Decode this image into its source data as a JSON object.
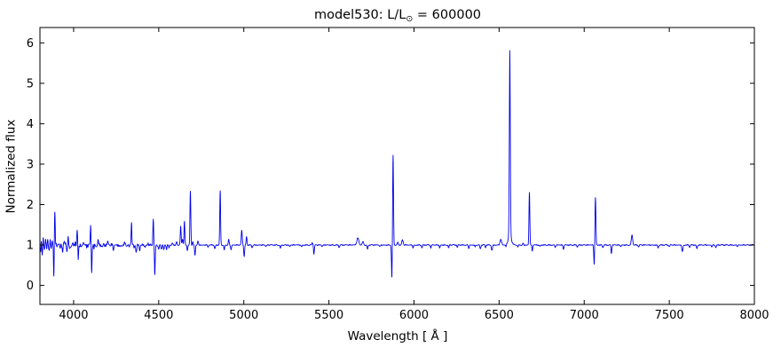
{
  "figure": {
    "title_prefix": "model530: L/L",
    "title_sub": "⊙",
    "title_suffix": " = 600000"
  },
  "chart_data": {
    "type": "line",
    "title": "model530: L/L⊙ = 600000",
    "xlabel": "Wavelength [ Å ]",
    "ylabel": "Normalized flux",
    "xlim": [
      3802,
      8000
    ],
    "ylim": [
      -0.47,
      6.38
    ],
    "x_ticks": [
      4000,
      4500,
      5000,
      5500,
      6000,
      6500,
      7000,
      7500,
      8000
    ],
    "y_ticks": [
      0,
      1,
      2,
      3,
      4,
      5,
      6
    ],
    "grid": false,
    "legend": "none",
    "line_color": "#0000ee",
    "baseline_flux": 1.0,
    "noise": {
      "base_amp": 0.013,
      "blue_amp": 0.055,
      "blue_cutoff": 4650
    },
    "features": [
      [
        3806,
        -0.1,
        1.5
      ],
      [
        3810,
        0.12,
        1.5
      ],
      [
        3815,
        -0.3,
        1.8
      ],
      [
        3822,
        0.15,
        1.8
      ],
      [
        3828,
        -0.12,
        1.5
      ],
      [
        3835,
        0.18,
        1.8
      ],
      [
        3842,
        -0.12,
        1.5
      ],
      [
        3848,
        0.1,
        1.5
      ],
      [
        3856,
        -0.14,
        1.5
      ],
      [
        3862,
        0.1,
        1.5
      ],
      [
        3869,
        -0.1,
        1.5
      ],
      [
        3875,
        0.08,
        1.5
      ],
      [
        3884,
        -0.85,
        2.0
      ],
      [
        3889,
        0.85,
        2.3
      ],
      [
        3920,
        -0.08,
        2.0
      ],
      [
        3935,
        -0.15,
        2.2
      ],
      [
        3946,
        0.08,
        2.0
      ],
      [
        3953,
        0.1,
        2.0
      ],
      [
        3961,
        -0.18,
        2.0
      ],
      [
        3968,
        0.16,
        2.2
      ],
      [
        3976,
        -0.1,
        2.0
      ],
      [
        4009,
        0.08,
        2.0
      ],
      [
        4021,
        0.33,
        2.3
      ],
      [
        4027,
        -0.4,
        2.0
      ],
      [
        4045,
        -0.08,
        2.0
      ],
      [
        4058,
        0.06,
        2.0
      ],
      [
        4076,
        -0.06,
        2.0
      ],
      [
        4100,
        0.5,
        2.3
      ],
      [
        4106,
        -0.68,
        2.0
      ],
      [
        4120,
        -0.1,
        2.0
      ],
      [
        4144,
        0.1,
        2.5
      ],
      [
        4170,
        -0.06,
        2.5
      ],
      [
        4200,
        0.07,
        2.5
      ],
      [
        4234,
        -0.13,
        2.5
      ],
      [
        4272,
        -0.06,
        2.5
      ],
      [
        4300,
        0.05,
        2.5
      ],
      [
        4326,
        -0.08,
        2.0
      ],
      [
        4340,
        0.55,
        2.3
      ],
      [
        4355,
        -0.1,
        2.5
      ],
      [
        4368,
        -0.18,
        2.8
      ],
      [
        4388,
        -0.14,
        2.5
      ],
      [
        4420,
        -0.06,
        2.5
      ],
      [
        4437,
        0.05,
        2.5
      ],
      [
        4468,
        0.65,
        2.2
      ],
      [
        4477,
        -0.73,
        2.4
      ],
      [
        4500,
        -0.12,
        3.0
      ],
      [
        4516,
        -0.1,
        2.5
      ],
      [
        4530,
        -0.13,
        2.5
      ],
      [
        4546,
        -0.1,
        2.5
      ],
      [
        4560,
        -0.07,
        2.5
      ],
      [
        4580,
        0.05,
        2.5
      ],
      [
        4605,
        0.08,
        2.5
      ],
      [
        4629,
        0.45,
        2.5
      ],
      [
        4640,
        0.15,
        2.5
      ],
      [
        4651,
        0.58,
        2.3
      ],
      [
        4668,
        -0.13,
        2.5
      ],
      [
        4686,
        1.32,
        2.4
      ],
      [
        4700,
        0.08,
        2.0
      ],
      [
        4713,
        -0.26,
        2.4
      ],
      [
        4730,
        0.1,
        2.6
      ],
      [
        4790,
        -0.05,
        3.0
      ],
      [
        4830,
        -0.1,
        3.0
      ],
      [
        4861,
        1.33,
        2.4
      ],
      [
        4885,
        -0.12,
        2.5
      ],
      [
        4911,
        0.14,
        2.5
      ],
      [
        4925,
        -0.11,
        2.8
      ],
      [
        4988,
        0.36,
        2.8
      ],
      [
        5002,
        -0.28,
        2.4
      ],
      [
        5016,
        0.2,
        2.4
      ],
      [
        5048,
        -0.06,
        3.0
      ],
      [
        5130,
        -0.04,
        3.0
      ],
      [
        5215,
        -0.08,
        2.8
      ],
      [
        5270,
        -0.04,
        3.0
      ],
      [
        5340,
        -0.05,
        3.0
      ],
      [
        5403,
        0.06,
        3.0
      ],
      [
        5412,
        -0.22,
        2.5
      ],
      [
        5460,
        -0.04,
        3.0
      ],
      [
        5560,
        -0.05,
        3.0
      ],
      [
        5670,
        0.17,
        6.0
      ],
      [
        5700,
        0.08,
        4.0
      ],
      [
        5727,
        -0.1,
        3.0
      ],
      [
        5800,
        -0.04,
        3.0
      ],
      [
        5870,
        -0.83,
        2.4
      ],
      [
        5877,
        2.22,
        2.4
      ],
      [
        5905,
        0.06,
        3.0
      ],
      [
        5932,
        0.12,
        4.0
      ],
      [
        5995,
        -0.07,
        2.5
      ],
      [
        6047,
        -0.07,
        2.5
      ],
      [
        6099,
        -0.07,
        2.5
      ],
      [
        6151,
        -0.07,
        2.5
      ],
      [
        6203,
        -0.07,
        2.5
      ],
      [
        6255,
        -0.06,
        2.5
      ],
      [
        6322,
        -0.08,
        2.5
      ],
      [
        6360,
        -0.05,
        2.5
      ],
      [
        6390,
        -0.1,
        2.8
      ],
      [
        6420,
        -0.06,
        2.5
      ],
      [
        6458,
        -0.13,
        3.2
      ],
      [
        6510,
        0.13,
        5.0
      ],
      [
        6540,
        -0.06,
        2.5
      ],
      [
        6563,
        4.6,
        2.8
      ],
      [
        6563,
        0.2,
        10.0
      ],
      [
        6610,
        -0.05,
        2.5
      ],
      [
        6640,
        0.04,
        2.5
      ],
      [
        6678,
        1.3,
        2.4
      ],
      [
        6695,
        -0.15,
        2.4
      ],
      [
        6740,
        -0.04,
        3.0
      ],
      [
        6830,
        -0.05,
        3.0
      ],
      [
        6878,
        -0.1,
        3.0
      ],
      [
        6960,
        -0.04,
        3.0
      ],
      [
        7059,
        -0.5,
        2.6
      ],
      [
        7066,
        1.18,
        2.6
      ],
      [
        7110,
        -0.05,
        3.0
      ],
      [
        7160,
        -0.2,
        2.5
      ],
      [
        7215,
        -0.04,
        3.0
      ],
      [
        7281,
        0.24,
        4.0
      ],
      [
        7320,
        -0.04,
        3.0
      ],
      [
        7434,
        -0.07,
        3.0
      ],
      [
        7500,
        -0.04,
        3.0
      ],
      [
        7577,
        -0.17,
        3.0
      ],
      [
        7620,
        -0.05,
        3.0
      ],
      [
        7662,
        -0.1,
        3.0
      ],
      [
        7750,
        -0.04,
        3.0
      ],
      [
        7774,
        -0.06,
        3.0
      ],
      [
        7900,
        -0.03,
        3.0
      ]
    ]
  }
}
